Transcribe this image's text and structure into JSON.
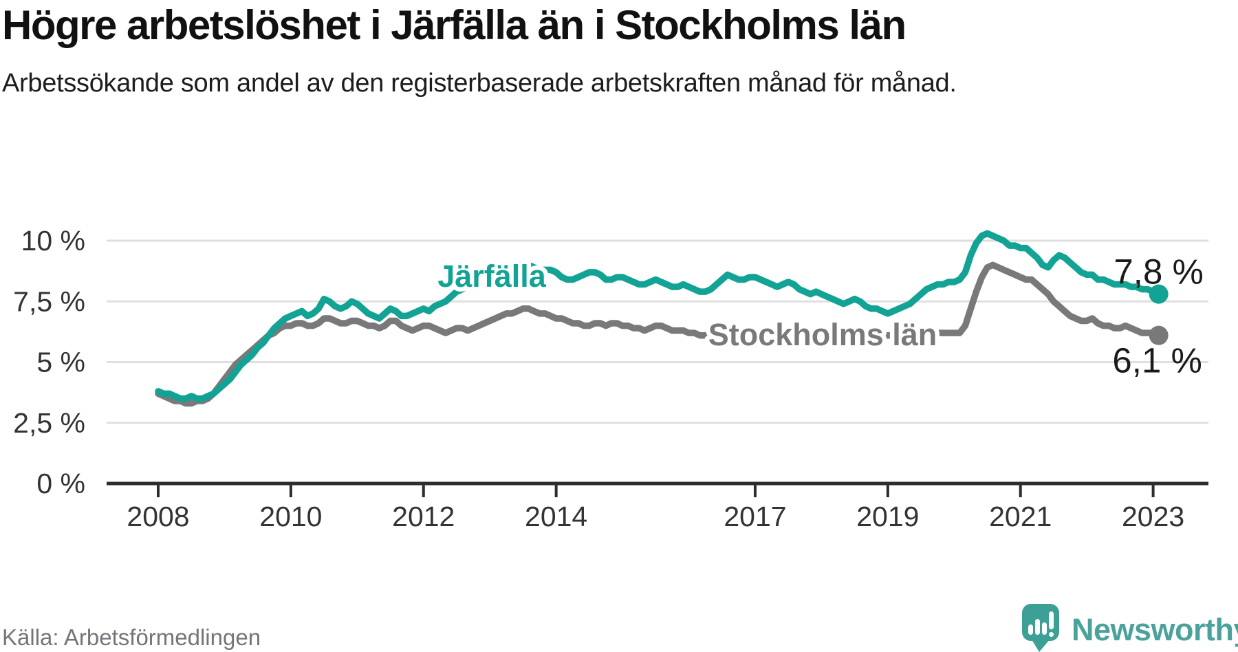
{
  "header": {
    "title": "Högre arbetslöshet i Järfälla än i Stockholms län",
    "subtitle": "Arbetssökande som andel av den registerbaserade arbetskraften månad för månad."
  },
  "footer": {
    "source": "Källa: Arbetsförmedlingen",
    "brand": "Newsworthy"
  },
  "colors": {
    "jarfalla": "#12a395",
    "stockholm": "#79797b",
    "grid": "#dfdfdf",
    "axis": "#2d2d2d",
    "tick_text": "#333333",
    "end_label_text": "#1a1a1a",
    "source_text": "#74747b",
    "brand_teal": "#4ba29b",
    "logo_teal": "#3da096"
  },
  "chart_data": {
    "type": "line",
    "title": "Högre arbetslöshet i Järfälla än i Stockholms län",
    "subtitle": "Arbetssökande som andel av den registerbaserade arbetskraften månad för månad.",
    "source": "Källa: Arbetsförmedlingen",
    "unit": "%",
    "frequency": "monthly",
    "x_start": "2008-01",
    "x_end": "2023-02",
    "x_tick_years": [
      2008,
      2010,
      2012,
      2014,
      2017,
      2019,
      2021,
      2023
    ],
    "x_tick_labels": [
      "2008",
      "2010",
      "2012",
      "2014",
      "2017",
      "2019",
      "2021",
      "2023"
    ],
    "y_ticks": [
      0,
      2.5,
      5,
      7.5,
      10
    ],
    "y_tick_labels": [
      "0 %",
      "2,5 %",
      "5 %",
      "7,5 %",
      "10 %"
    ],
    "ylim": [
      0,
      10.6
    ],
    "grid": "horizontal",
    "legend_position": "inline-labels",
    "series": [
      {
        "name": "Järfälla",
        "color": "#12a395",
        "end_label": "7,8 %",
        "end_value": 7.8,
        "values": [
          3.8,
          3.7,
          3.7,
          3.6,
          3.5,
          3.5,
          3.6,
          3.5,
          3.5,
          3.6,
          3.7,
          3.9,
          4.1,
          4.3,
          4.6,
          4.9,
          5.1,
          5.3,
          5.6,
          5.8,
          6.1,
          6.4,
          6.6,
          6.8,
          6.9,
          7.0,
          7.1,
          6.9,
          7.0,
          7.2,
          7.6,
          7.5,
          7.3,
          7.2,
          7.3,
          7.5,
          7.4,
          7.2,
          7.0,
          6.9,
          6.8,
          7.0,
          7.2,
          7.1,
          6.9,
          6.9,
          7.0,
          7.1,
          7.2,
          7.1,
          7.3,
          7.4,
          7.5,
          7.7,
          7.9,
          8.0,
          8.2,
          8.3,
          8.5,
          8.6,
          8.6,
          8.7,
          8.7,
          8.6,
          8.5,
          8.7,
          8.9,
          9.0,
          8.9,
          8.8,
          8.8,
          8.8,
          8.7,
          8.5,
          8.4,
          8.4,
          8.5,
          8.6,
          8.7,
          8.7,
          8.6,
          8.4,
          8.4,
          8.5,
          8.5,
          8.4,
          8.3,
          8.2,
          8.2,
          8.3,
          8.4,
          8.3,
          8.2,
          8.1,
          8.1,
          8.2,
          8.1,
          8.0,
          7.9,
          7.9,
          8.0,
          8.2,
          8.4,
          8.6,
          8.5,
          8.4,
          8.4,
          8.5,
          8.5,
          8.4,
          8.3,
          8.2,
          8.1,
          8.2,
          8.3,
          8.2,
          8.0,
          7.9,
          7.8,
          7.9,
          7.8,
          7.7,
          7.6,
          7.5,
          7.4,
          7.5,
          7.6,
          7.5,
          7.3,
          7.2,
          7.2,
          7.1,
          7.0,
          7.1,
          7.2,
          7.3,
          7.4,
          7.6,
          7.8,
          8.0,
          8.1,
          8.2,
          8.2,
          8.3,
          8.3,
          8.4,
          8.7,
          9.4,
          9.9,
          10.2,
          10.3,
          10.2,
          10.1,
          10.0,
          9.8,
          9.8,
          9.7,
          9.7,
          9.5,
          9.3,
          9.0,
          8.9,
          9.2,
          9.4,
          9.3,
          9.1,
          8.9,
          8.7,
          8.6,
          8.6,
          8.4,
          8.4,
          8.3,
          8.2,
          8.2,
          8.2,
          8.1,
          8.1,
          8.0,
          8.0,
          7.9,
          7.8
        ]
      },
      {
        "name": "Stockholms län",
        "color": "#79797b",
        "end_label": "6,1 %",
        "end_value": 6.1,
        "values": [
          3.7,
          3.6,
          3.5,
          3.4,
          3.4,
          3.3,
          3.3,
          3.4,
          3.4,
          3.5,
          3.7,
          4.0,
          4.3,
          4.6,
          4.9,
          5.1,
          5.3,
          5.5,
          5.7,
          5.9,
          6.1,
          6.2,
          6.4,
          6.5,
          6.5,
          6.6,
          6.6,
          6.5,
          6.5,
          6.6,
          6.8,
          6.8,
          6.7,
          6.6,
          6.6,
          6.7,
          6.7,
          6.6,
          6.5,
          6.5,
          6.4,
          6.5,
          6.7,
          6.7,
          6.5,
          6.4,
          6.3,
          6.4,
          6.5,
          6.5,
          6.4,
          6.3,
          6.2,
          6.3,
          6.4,
          6.4,
          6.3,
          6.4,
          6.5,
          6.6,
          6.7,
          6.8,
          6.9,
          7.0,
          7.0,
          7.1,
          7.2,
          7.2,
          7.1,
          7.0,
          7.0,
          6.9,
          6.8,
          6.8,
          6.7,
          6.6,
          6.6,
          6.5,
          6.5,
          6.6,
          6.6,
          6.5,
          6.6,
          6.6,
          6.5,
          6.5,
          6.4,
          6.4,
          6.3,
          6.4,
          6.5,
          6.5,
          6.4,
          6.3,
          6.3,
          6.3,
          6.2,
          6.2,
          6.1,
          6.1,
          6.2,
          6.3,
          6.4,
          6.4,
          6.3,
          6.2,
          6.2,
          6.2,
          6.2,
          6.1,
          6.1,
          6.0,
          6.0,
          6.1,
          6.2,
          6.2,
          6.1,
          6.1,
          6.0,
          6.1,
          6.1,
          6.0,
          6.0,
          5.9,
          5.9,
          6.0,
          6.1,
          6.1,
          6.0,
          6.0,
          6.0,
          6.1,
          6.1,
          6.1,
          6.1,
          6.1,
          6.1,
          6.2,
          6.2,
          6.2,
          6.2,
          6.2,
          6.2,
          6.2,
          6.2,
          6.2,
          6.5,
          7.2,
          7.9,
          8.5,
          8.9,
          9.0,
          8.9,
          8.8,
          8.7,
          8.6,
          8.5,
          8.4,
          8.4,
          8.2,
          8.0,
          7.8,
          7.5,
          7.3,
          7.1,
          6.9,
          6.8,
          6.7,
          6.7,
          6.8,
          6.6,
          6.5,
          6.5,
          6.4,
          6.4,
          6.5,
          6.4,
          6.3,
          6.2,
          6.2,
          6.2,
          6.1
        ]
      }
    ]
  }
}
